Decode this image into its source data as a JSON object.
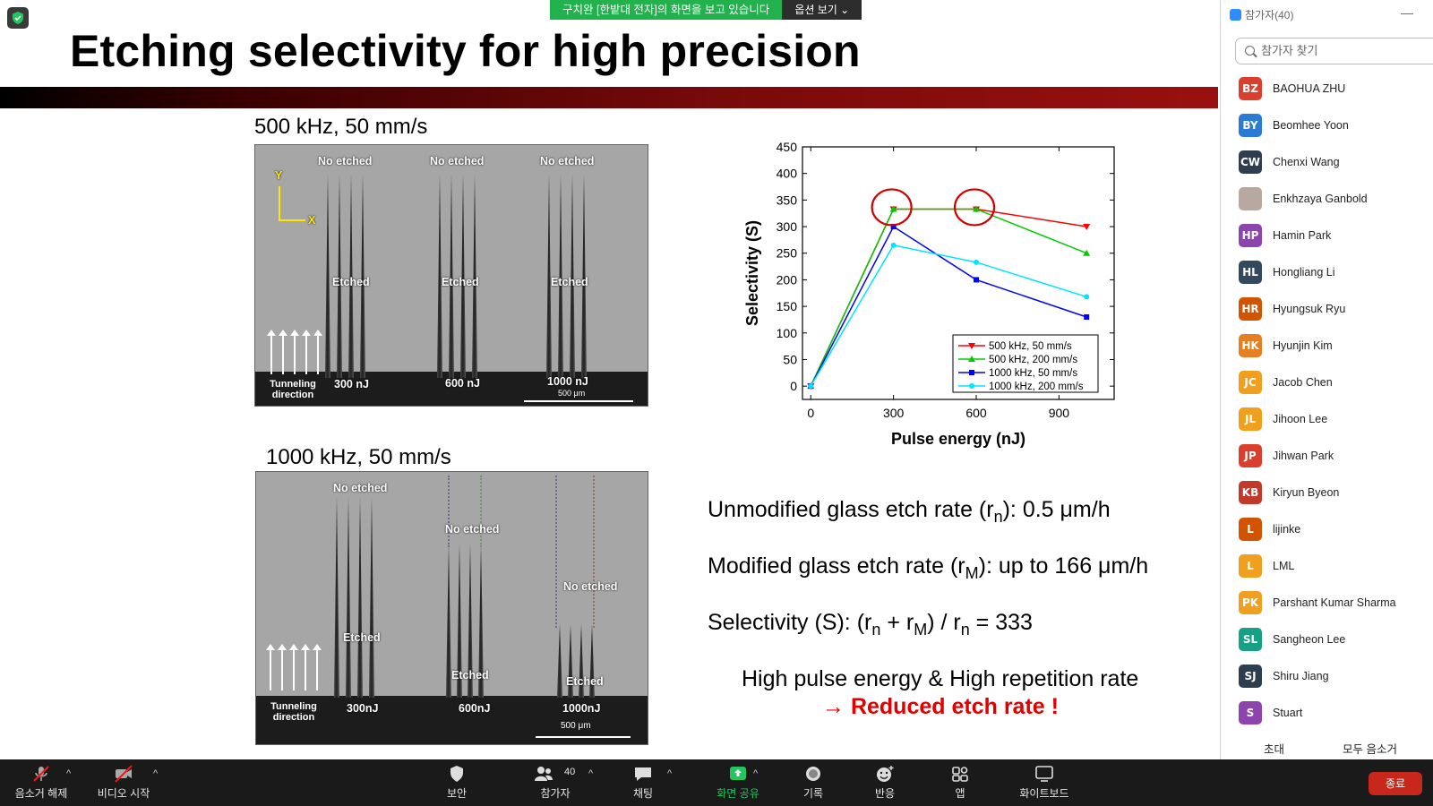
{
  "slide": {
    "title": "Etching selectivity for high precision",
    "panel_top_label": "500 kHz, 50 mm/s",
    "panel_bottom_label": "1000 kHz, 50 mm/s",
    "top_image": {
      "no_etched": "No etched",
      "etched": "Etched",
      "energies": [
        "300 nJ",
        "600 nJ",
        "1000 nJ"
      ],
      "axis_y": "Y",
      "axis_x": "X",
      "tunneling": "Tunneling direction",
      "scale": "500 μm"
    },
    "bottom_image": {
      "no_etched": "No etched",
      "etched": "Etched",
      "energies": [
        "300nJ",
        "600nJ",
        "1000nJ"
      ],
      "tunneling": "Tunneling direction",
      "scale": "500 μm"
    },
    "info": {
      "line1_pre": "Unmodified glass etch rate  (r",
      "line1_sub": "n",
      "line1_post": "): 0.5 μm/h",
      "line2_pre": "Modified glass etch rate (r",
      "line2_sub": "M",
      "line2_post": "): up to 166 μm/h",
      "line3_pre": "Selectivity (S): (r",
      "line3_sub1": "n",
      "line3_mid": " + r",
      "line3_sub2": "M",
      "line3_mid2": ") / r",
      "line3_sub3": "n",
      "line3_post": "  = 333",
      "conclusion1": "High pulse energy & High repetition rate",
      "conclusion2": "→ Reduced etch rate !"
    }
  },
  "chart_data": {
    "type": "line",
    "xlabel": "Pulse energy (nJ)",
    "ylabel": "Selectivity (S)",
    "xlim": [
      -30,
      1100
    ],
    "ylim": [
      -25,
      450
    ],
    "xticks": [
      0,
      300,
      600,
      900
    ],
    "yticks": [
      0,
      50,
      100,
      150,
      200,
      250,
      300,
      350,
      400,
      450
    ],
    "x": [
      0,
      300,
      600,
      1000
    ],
    "legend_position": "bottom-right",
    "series": [
      {
        "name": "500 kHz, 50 mm/s",
        "values": [
          0,
          333,
          333,
          300
        ],
        "color": "#ff0000",
        "marker": "triangle-down"
      },
      {
        "name": "500 kHz, 200 mm/s",
        "values": [
          0,
          333,
          333,
          250
        ],
        "color": "#00cc00",
        "marker": "triangle-up"
      },
      {
        "name": "1000 kHz, 50 mm/s",
        "values": [
          0,
          300,
          200,
          130
        ],
        "color": "#0000ff",
        "marker": "square"
      },
      {
        "name": "1000 kHz, 200 mm/s",
        "values": [
          0,
          265,
          233,
          168
        ],
        "color": "#00e5ff",
        "marker": "circle"
      }
    ],
    "highlight_circles_x": [
      300,
      600
    ],
    "highlight_circles_y": 333,
    "highlight_color": "#d40000"
  },
  "zoom": {
    "banner_text": "구치완 [한밭대 전자]의 화면을 보고 있습니다",
    "view_options": "옵션 보기",
    "panel_title": "참가자(40)",
    "search_placeholder": "참가자 찾기",
    "participants": [
      {
        "initials": "BZ",
        "name": "BAOHUA ZHU",
        "color": "#d93f2c"
      },
      {
        "initials": "BY",
        "name": "Beomhee Yoon",
        "color": "#2b7bd6"
      },
      {
        "initials": "CW",
        "name": "Chenxi Wang",
        "color": "#2f3e4e"
      },
      {
        "initials": "",
        "name": "Enkhzaya Ganbold",
        "color": "#b8a9a0"
      },
      {
        "initials": "HP",
        "name": "Hamin Park",
        "color": "#8e44ad"
      },
      {
        "initials": "HL",
        "name": "Hongliang Li",
        "color": "#34495e"
      },
      {
        "initials": "HR",
        "name": "Hyungsuk Ryu",
        "color": "#d35400"
      },
      {
        "initials": "HK",
        "name": "Hyunjin Kim",
        "color": "#e67e22"
      },
      {
        "initials": "JC",
        "name": "Jacob Chen",
        "color": "#f0a01e"
      },
      {
        "initials": "JL",
        "name": "Jihoon Lee",
        "color": "#f0a01e"
      },
      {
        "initials": "JP",
        "name": "Jihwan Park",
        "color": "#d93f2c"
      },
      {
        "initials": "KB",
        "name": "Kiryun Byeon",
        "color": "#c0392b"
      },
      {
        "initials": "L",
        "name": "lijinke",
        "color": "#d35400"
      },
      {
        "initials": "L",
        "name": "LML",
        "color": "#f0a01e"
      },
      {
        "initials": "PK",
        "name": "Parshant Kumar Sharma",
        "color": "#f0a01e"
      },
      {
        "initials": "SL",
        "name": "Sangheon Lee",
        "color": "#16a085"
      },
      {
        "initials": "SJ",
        "name": "Shiru Jiang",
        "color": "#2f3e4e"
      },
      {
        "initials": "S",
        "name": "Stuart",
        "color": "#8e44ad"
      }
    ],
    "invite": "초대",
    "mute_all": "모두 음소거",
    "toolbar": {
      "mute": "음소거 해제",
      "video": "비디오 시작",
      "security": "보안",
      "participants": "참가자",
      "participants_count": "40",
      "chat": "채팅",
      "share": "화면 공유",
      "record": "기록",
      "reactions": "반응",
      "apps": "앱",
      "whiteboard": "화이트보드",
      "end": "종료"
    }
  }
}
